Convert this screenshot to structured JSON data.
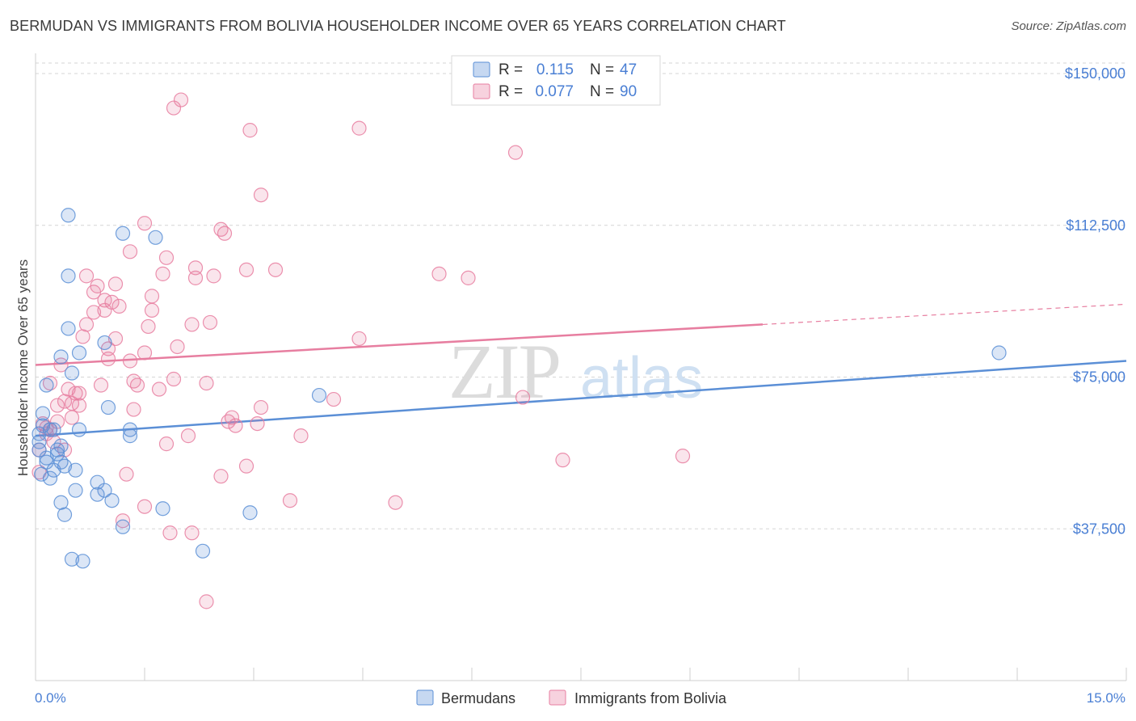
{
  "header": {
    "title": "BERMUDAN VS IMMIGRANTS FROM BOLIVIA HOUSEHOLDER INCOME OVER 65 YEARS CORRELATION CHART",
    "source": "Source: ZipAtlas.com"
  },
  "watermark": {
    "zip": "ZIP",
    "atlas": "atlas"
  },
  "legend_box": {
    "rows": [
      {
        "r_label": "R =",
        "r_value": "0.115",
        "n_label": "N =",
        "n_value": "47",
        "color": "#5b8fd6"
      },
      {
        "r_label": "R =",
        "r_value": "0.077",
        "n_label": "N =",
        "n_value": "90",
        "color": "#e77ea0"
      }
    ]
  },
  "bottom_legend": {
    "items": [
      {
        "label": "Bermudans",
        "color": "#5b8fd6"
      },
      {
        "label": "Immigrants from Bolivia",
        "color": "#e77ea0"
      }
    ]
  },
  "chart_data": {
    "type": "scatter",
    "title": "BERMUDAN VS IMMIGRANTS FROM BOLIVIA HOUSEHOLDER INCOME OVER 65 YEARS CORRELATION CHART",
    "xlabel": "",
    "ylabel": "Householder Income Over 65 years",
    "xlim": [
      0,
      15
    ],
    "ylim": [
      0,
      155000
    ],
    "x_tick_labels": [
      "0.0%",
      "15.0%"
    ],
    "y_ticks": [
      37500,
      75000,
      112500,
      150000
    ],
    "y_tick_labels": [
      "$37,500",
      "$75,000",
      "$112,500",
      "$150,000"
    ],
    "grid": true,
    "series": [
      {
        "name": "Bermudans",
        "color": "#5b8fd6",
        "fill": "rgba(91,143,214,0.22)",
        "points": [
          [
            0.05,
            61000
          ],
          [
            0.05,
            57000
          ],
          [
            0.08,
            51000
          ],
          [
            0.1,
            66000
          ],
          [
            0.15,
            73000
          ],
          [
            0.15,
            55000
          ],
          [
            0.25,
            62000
          ],
          [
            0.25,
            52000
          ],
          [
            0.3,
            56000
          ],
          [
            0.35,
            54000
          ],
          [
            0.35,
            44000
          ],
          [
            0.35,
            80000
          ],
          [
            0.4,
            41000
          ],
          [
            0.4,
            53000
          ],
          [
            0.45,
            100000
          ],
          [
            0.45,
            87000
          ],
          [
            0.45,
            115000
          ],
          [
            0.5,
            76000
          ],
          [
            0.5,
            30000
          ],
          [
            0.55,
            52000
          ],
          [
            0.55,
            47000
          ],
          [
            0.6,
            81000
          ],
          [
            0.65,
            29500
          ],
          [
            0.85,
            49000
          ],
          [
            0.85,
            46000
          ],
          [
            0.95,
            47000
          ],
          [
            0.95,
            83500
          ],
          [
            1.0,
            67500
          ],
          [
            1.05,
            44500
          ],
          [
            1.2,
            110500
          ],
          [
            1.2,
            38000
          ],
          [
            1.3,
            62000
          ],
          [
            1.3,
            60500
          ],
          [
            1.65,
            109500
          ],
          [
            1.75,
            42500
          ],
          [
            2.3,
            32000
          ],
          [
            2.95,
            41500
          ],
          [
            3.9,
            70500
          ],
          [
            13.25,
            81000
          ],
          [
            0.1,
            63000
          ],
          [
            0.2,
            62000
          ],
          [
            0.3,
            57000
          ],
          [
            0.6,
            62000
          ],
          [
            0.35,
            58000
          ],
          [
            0.05,
            59000
          ],
          [
            0.15,
            54000
          ],
          [
            0.2,
            50000
          ]
        ],
        "trend": {
          "x0": 0,
          "y0": 60500,
          "x1": 15,
          "y1": 79000
        }
      },
      {
        "name": "Immigrants from Bolivia",
        "color": "#e77ea0",
        "fill": "rgba(231,126,160,0.20)",
        "points": [
          [
            0.05,
            57000
          ],
          [
            0.05,
            51500
          ],
          [
            0.1,
            63500
          ],
          [
            0.15,
            62500
          ],
          [
            0.2,
            62000
          ],
          [
            0.2,
            73500
          ],
          [
            0.3,
            68000
          ],
          [
            0.3,
            64000
          ],
          [
            0.35,
            78000
          ],
          [
            0.4,
            69000
          ],
          [
            0.45,
            72000
          ],
          [
            0.5,
            65000
          ],
          [
            0.5,
            68500
          ],
          [
            0.55,
            71000
          ],
          [
            0.6,
            68000
          ],
          [
            0.65,
            85000
          ],
          [
            0.7,
            88000
          ],
          [
            0.7,
            100000
          ],
          [
            0.8,
            91000
          ],
          [
            0.8,
            96000
          ],
          [
            0.85,
            97500
          ],
          [
            0.9,
            73000
          ],
          [
            0.95,
            94000
          ],
          [
            0.95,
            91500
          ],
          [
            1.0,
            79500
          ],
          [
            1.0,
            82000
          ],
          [
            1.05,
            93500
          ],
          [
            1.1,
            98000
          ],
          [
            1.1,
            84500
          ],
          [
            1.15,
            92500
          ],
          [
            1.2,
            39500
          ],
          [
            1.25,
            51000
          ],
          [
            1.3,
            79000
          ],
          [
            1.3,
            106000
          ],
          [
            1.35,
            67000
          ],
          [
            1.35,
            74000
          ],
          [
            1.4,
            73000
          ],
          [
            1.5,
            81000
          ],
          [
            1.5,
            43000
          ],
          [
            1.5,
            113000
          ],
          [
            1.55,
            87500
          ],
          [
            1.6,
            91500
          ],
          [
            1.6,
            95000
          ],
          [
            1.7,
            72000
          ],
          [
            1.75,
            100500
          ],
          [
            1.8,
            104500
          ],
          [
            1.8,
            58500
          ],
          [
            1.85,
            36500
          ],
          [
            1.9,
            74500
          ],
          [
            1.95,
            82500
          ],
          [
            1.9,
            141500
          ],
          [
            2.0,
            143500
          ],
          [
            2.1,
            60500
          ],
          [
            2.15,
            36500
          ],
          [
            2.15,
            88000
          ],
          [
            2.2,
            99500
          ],
          [
            2.2,
            102000
          ],
          [
            2.35,
            73500
          ],
          [
            2.4,
            88500
          ],
          [
            2.35,
            19500
          ],
          [
            2.45,
            100000
          ],
          [
            2.55,
            50500
          ],
          [
            2.55,
            111500
          ],
          [
            2.6,
            110500
          ],
          [
            2.65,
            64000
          ],
          [
            2.7,
            65000
          ],
          [
            2.75,
            63000
          ],
          [
            2.9,
            53000
          ],
          [
            2.9,
            101500
          ],
          [
            2.95,
            136000
          ],
          [
            3.05,
            63500
          ],
          [
            3.1,
            67500
          ],
          [
            3.1,
            120000
          ],
          [
            3.3,
            101500
          ],
          [
            3.5,
            44500
          ],
          [
            3.65,
            60500
          ],
          [
            4.1,
            69500
          ],
          [
            4.45,
            84500
          ],
          [
            4.45,
            136500
          ],
          [
            4.95,
            44000
          ],
          [
            5.55,
            100500
          ],
          [
            5.95,
            99500
          ],
          [
            6.6,
            130500
          ],
          [
            6.7,
            70000
          ],
          [
            7.25,
            54500
          ],
          [
            8.9,
            55500
          ],
          [
            0.25,
            59000
          ],
          [
            0.4,
            57000
          ],
          [
            0.6,
            71000
          ],
          [
            0.15,
            61000
          ]
        ],
        "trend": {
          "x0": 0,
          "y0": 78000,
          "x1": 10.0,
          "y1": 88000,
          "x2": 15,
          "y2": 93000
        }
      }
    ]
  }
}
